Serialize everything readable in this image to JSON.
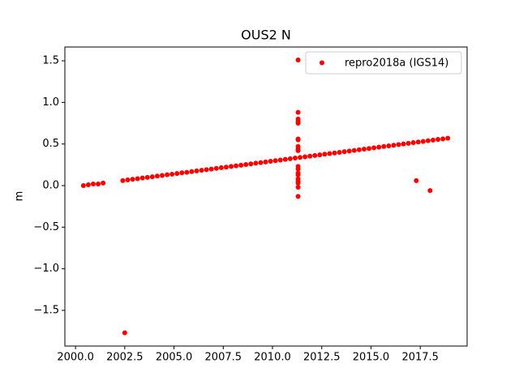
{
  "chart_data": {
    "type": "scatter",
    "title": "OUS2 N",
    "ylabel": "m",
    "xlim": [
      1999.46,
      2019.88
    ],
    "ylim": [
      -1.929,
      1.666
    ],
    "xticks": [
      {
        "value": 2000,
        "label": "2000.0"
      },
      {
        "value": 2002.5,
        "label": "2002.5"
      },
      {
        "value": 2005,
        "label": "2005.0"
      },
      {
        "value": 2007.5,
        "label": "2007.5"
      },
      {
        "value": 2010,
        "label": "2010.0"
      },
      {
        "value": 2012.5,
        "label": "2012.5"
      },
      {
        "value": 2015,
        "label": "2015.0"
      },
      {
        "value": 2017.5,
        "label": "2017.5"
      }
    ],
    "yticks": [
      {
        "value": -1.5,
        "label": "−1.5"
      },
      {
        "value": -1,
        "label": "−1.0"
      },
      {
        "value": -0.5,
        "label": "−0.5"
      },
      {
        "value": 0,
        "label": "0.0"
      },
      {
        "value": 0.5,
        "label": "0.5"
      },
      {
        "value": 1,
        "label": "1.0"
      },
      {
        "value": 1.5,
        "label": "1.5"
      }
    ],
    "legend": "upper right",
    "x": [
      2000.4,
      2000.65,
      2000.9,
      2001.15,
      2001.4,
      2002.4,
      2002.65,
      2002.9,
      2003.15,
      2003.4,
      2003.65,
      2003.9,
      2004.15,
      2004.4,
      2004.65,
      2004.9,
      2005.15,
      2005.4,
      2005.65,
      2005.9,
      2006.15,
      2006.4,
      2006.65,
      2006.9,
      2007.15,
      2007.4,
      2007.65,
      2007.9,
      2008.15,
      2008.4,
      2008.65,
      2008.9,
      2009.15,
      2009.4,
      2009.65,
      2009.9,
      2010.15,
      2010.4,
      2010.65,
      2010.9,
      2011.15,
      2011.4,
      2011.65,
      2011.9,
      2012.15,
      2012.4,
      2012.65,
      2012.9,
      2013.15,
      2013.4,
      2013.65,
      2013.9,
      2014.15,
      2014.4,
      2014.65,
      2014.9,
      2015.15,
      2015.4,
      2015.65,
      2015.9,
      2016.15,
      2016.4,
      2016.65,
      2016.9,
      2017.15,
      2017.4,
      2017.65,
      2017.9,
      2018.15,
      2018.4,
      2018.65,
      2018.9,
      2002.5,
      2011.3,
      2011.3,
      2011.3,
      2011.3,
      2011.3,
      2011.3,
      2011.3,
      2011.3,
      2011.3,
      2011.3,
      2011.3,
      2011.3,
      2011.3,
      2011.3,
      2011.3,
      2011.3,
      2011.3,
      2011.3,
      2011.3,
      2017.3,
      2018.0
    ],
    "series": [
      {
        "name": "repro2018a (IGS14)",
        "color": "#ff0000",
        "values": [
          0.0,
          0.01,
          0.02,
          0.02,
          0.03,
          0.06,
          0.068,
          0.075,
          0.083,
          0.091,
          0.099,
          0.106,
          0.114,
          0.122,
          0.13,
          0.137,
          0.145,
          0.153,
          0.16,
          0.168,
          0.176,
          0.184,
          0.191,
          0.199,
          0.207,
          0.215,
          0.222,
          0.23,
          0.238,
          0.245,
          0.253,
          0.261,
          0.269,
          0.276,
          0.284,
          0.292,
          0.3,
          0.307,
          0.315,
          0.323,
          0.331,
          0.338,
          0.346,
          0.354,
          0.362,
          0.369,
          0.377,
          0.385,
          0.392,
          0.4,
          0.408,
          0.415,
          0.423,
          0.431,
          0.439,
          0.446,
          0.454,
          0.462,
          0.47,
          0.477,
          0.485,
          0.493,
          0.5,
          0.508,
          0.516,
          0.524,
          0.531,
          0.539,
          0.547,
          0.555,
          0.562,
          0.57,
          -1.77,
          1.51,
          0.88,
          0.8,
          0.77,
          0.75,
          0.56,
          0.55,
          0.47,
          0.44,
          0.42,
          0.23,
          0.2,
          0.15,
          0.13,
          0.08,
          0.05,
          0.03,
          -0.02,
          -0.13,
          0.06,
          -0.06
        ]
      }
    ]
  }
}
